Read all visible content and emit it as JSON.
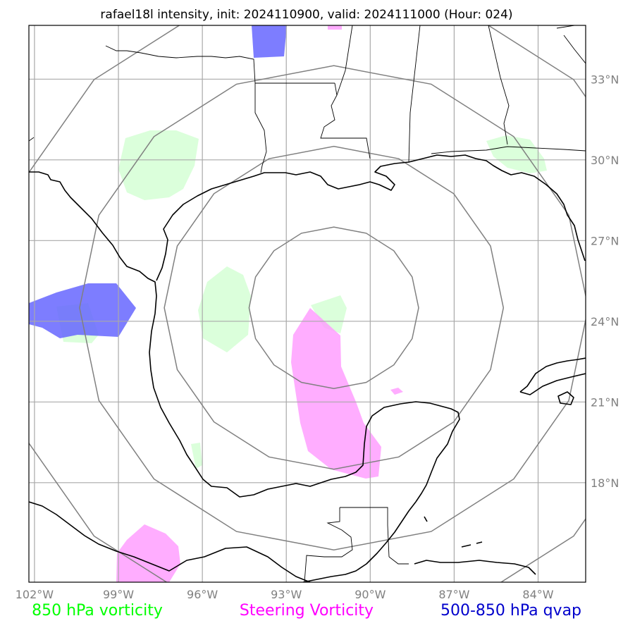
{
  "title": "rafael18l intensity, init: 2024110900, valid: 2024111000 (Hour: 024)",
  "map": {
    "lon_range": [
      -102.2,
      -82.3
    ],
    "lat_range": [
      14.3,
      35.0
    ],
    "lon_ticks": [
      {
        "value": -102,
        "label": "102°W"
      },
      {
        "value": -99,
        "label": "99°W"
      },
      {
        "value": -96,
        "label": "96°W"
      },
      {
        "value": -93,
        "label": "93°W"
      },
      {
        "value": -90,
        "label": "90°W"
      },
      {
        "value": -87,
        "label": "87°W"
      },
      {
        "value": -84,
        "label": "84°W"
      }
    ],
    "lat_ticks": [
      {
        "value": 18,
        "label": "18°N"
      },
      {
        "value": 21,
        "label": "21°N"
      },
      {
        "value": 24,
        "label": "24°N"
      },
      {
        "value": 27,
        "label": "27°N"
      },
      {
        "value": 30,
        "label": "30°N"
      },
      {
        "value": 33,
        "label": "33°N"
      }
    ],
    "storm_center": {
      "lon": -91.3,
      "lat": 24.5
    },
    "range_rings_deg": [
      3,
      6,
      9,
      12
    ],
    "colors": {
      "vort850": "#ccffcc",
      "steering": "#ff99ff",
      "qvap": "#6666ff",
      "ring": "#808080",
      "grid": "#a9a9a9"
    }
  },
  "legend": [
    {
      "label": "850 hPa vorticity",
      "color": "#00ff00"
    },
    {
      "label": "Steering Vorticity",
      "color": "#ff00ff"
    },
    {
      "label": "500-850 hPa qvap",
      "color": "#0000cc"
    }
  ]
}
